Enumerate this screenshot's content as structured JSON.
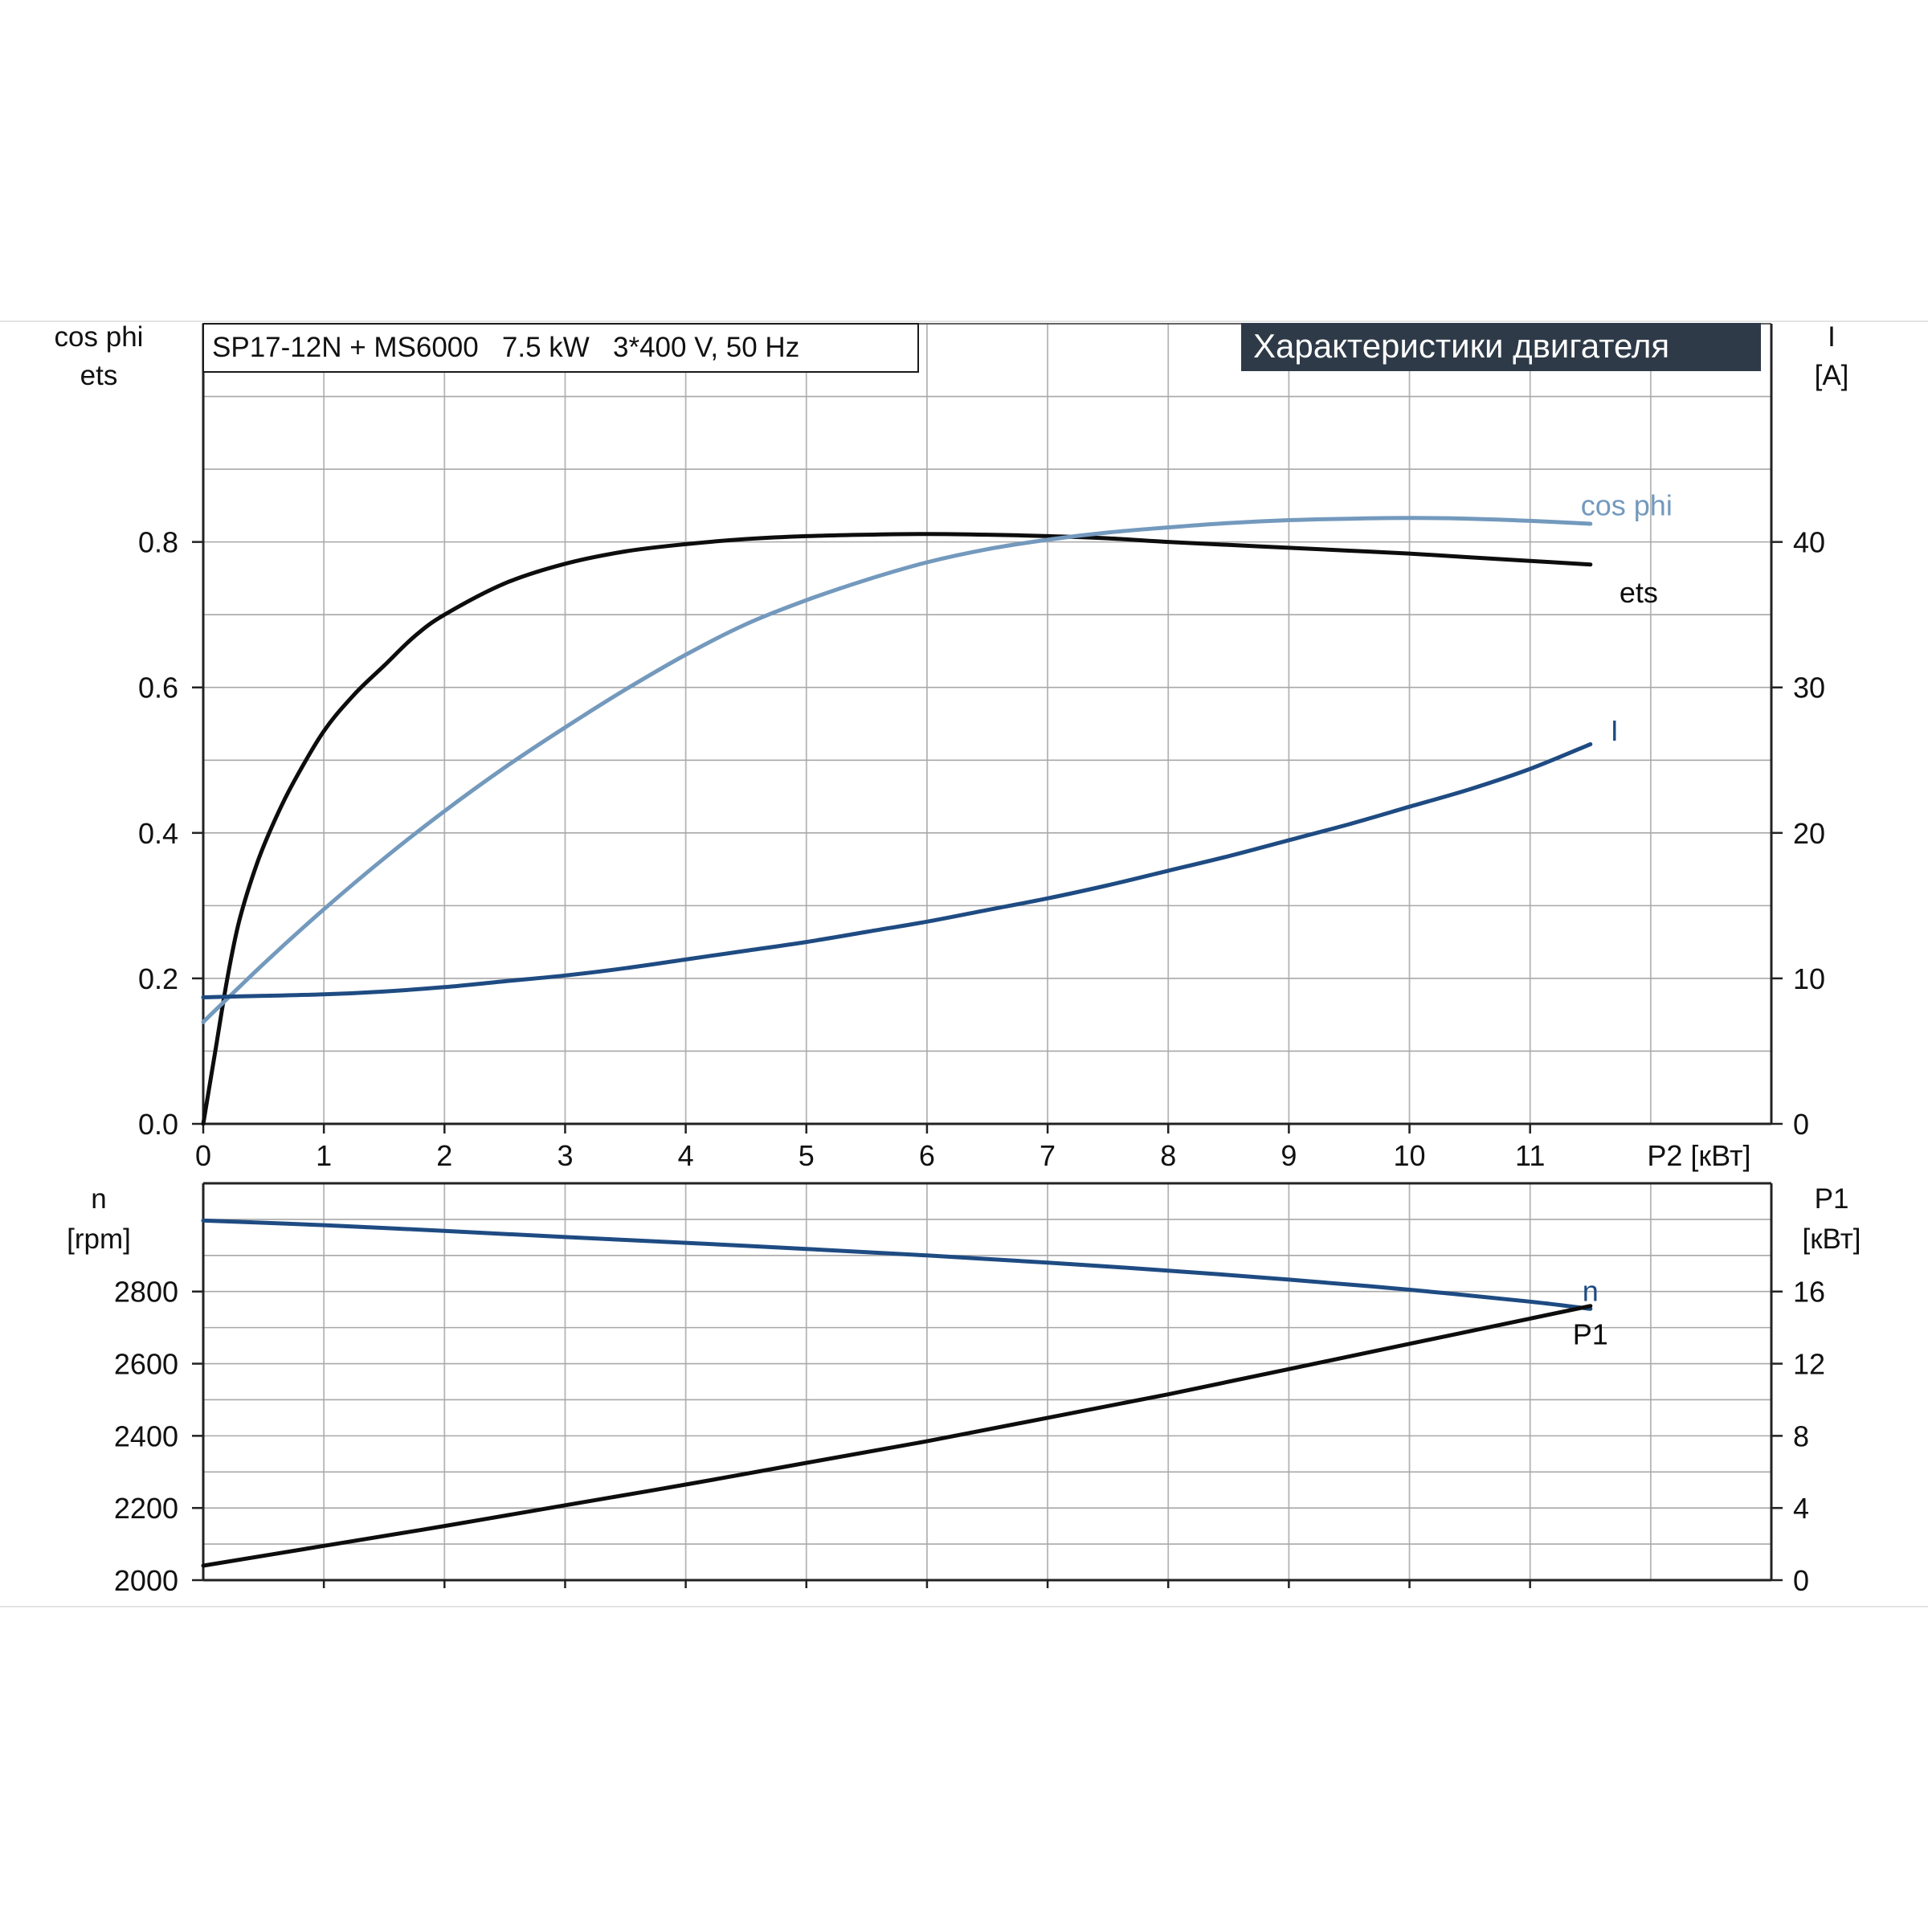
{
  "header": {
    "model_label": "SP17-12N + MS6000   7.5 kW   3*400 V, 50 Hz",
    "chart_title": "Характеристики двигателя"
  },
  "colors": {
    "ets": "#0d0d0d",
    "cos_phi": "#7399bd",
    "current": "#1e4b82",
    "speed": "#1e4b82",
    "p1": "#0d0d0d",
    "grid": "#a8a8a8",
    "title_bg": "#2e3a47"
  },
  "chart_data": [
    {
      "type": "line",
      "xlabel": "P2 [кВт]",
      "xlim": [
        0,
        13
      ],
      "x_ticks": [
        0,
        1,
        2,
        3,
        4,
        5,
        6,
        7,
        8,
        9,
        10,
        11
      ],
      "x_tick_labels": [
        "0",
        "1",
        "2",
        "3",
        "4",
        "5",
        "6",
        "7",
        "8",
        "9",
        "10",
        "11"
      ],
      "left_axis": {
        "label_lines": [
          "cos phi",
          "ets"
        ],
        "lim": [
          0,
          1.1
        ],
        "ticks": [
          0,
          0.2,
          0.4,
          0.6,
          0.8
        ],
        "tick_labels": [
          "0.0",
          "0.2",
          "0.4",
          "0.6",
          "0.8"
        ]
      },
      "right_axis": {
        "label_lines": [
          "I",
          "[A]"
        ],
        "lim": [
          0,
          55
        ],
        "ticks": [
          0,
          10,
          20,
          30,
          40
        ],
        "tick_labels": [
          "0",
          "10",
          "20",
          "30",
          "40"
        ]
      },
      "grid": true,
      "series": [
        {
          "name": "ets",
          "axis": "left",
          "x": [
            0,
            0.1,
            0.2,
            0.3,
            0.45,
            0.6,
            0.75,
            1,
            1.25,
            1.5,
            1.75,
            2,
            2.5,
            3,
            3.5,
            4,
            4.5,
            5,
            5.5,
            6,
            6.5,
            7,
            7.5,
            8,
            8.5,
            9,
            9.5,
            10,
            10.5,
            11,
            11.5
          ],
          "y": [
            0,
            0.1,
            0.2,
            0.28,
            0.36,
            0.42,
            0.47,
            0.54,
            0.59,
            0.63,
            0.67,
            0.7,
            0.743,
            0.77,
            0.787,
            0.797,
            0.804,
            0.808,
            0.81,
            0.811,
            0.81,
            0.808,
            0.805,
            0.8,
            0.796,
            0.792,
            0.788,
            0.784,
            0.779,
            0.774,
            0.769
          ]
        },
        {
          "name": "cos phi",
          "axis": "left",
          "x": [
            0,
            0.5,
            1,
            1.5,
            2,
            2.5,
            3,
            3.5,
            4,
            4.5,
            5,
            5.5,
            6,
            6.5,
            7,
            7.5,
            8,
            8.5,
            9,
            9.5,
            10,
            10.5,
            11,
            11.5
          ],
          "y": [
            0.14,
            0.22,
            0.295,
            0.365,
            0.43,
            0.49,
            0.545,
            0.597,
            0.645,
            0.687,
            0.72,
            0.748,
            0.772,
            0.79,
            0.803,
            0.813,
            0.82,
            0.826,
            0.83,
            0.832,
            0.833,
            0.832,
            0.829,
            0.825
          ]
        },
        {
          "name": "I",
          "axis": "right",
          "x": [
            0,
            0.5,
            1,
            1.5,
            2,
            2.5,
            3,
            3.5,
            4,
            4.5,
            5,
            5.5,
            6,
            6.5,
            7,
            7.5,
            8,
            8.5,
            9,
            9.5,
            10,
            10.5,
            11,
            11.5
          ],
          "y": [
            8.7,
            8.8,
            8.9,
            9.1,
            9.4,
            9.8,
            10.2,
            10.7,
            11.3,
            11.9,
            12.5,
            13.2,
            13.9,
            14.7,
            15.5,
            16.4,
            17.4,
            18.4,
            19.5,
            20.6,
            21.8,
            23.0,
            24.4,
            26.1
          ]
        }
      ],
      "annotations": [
        {
          "text": "cos phi",
          "series": "cos phi",
          "x": 11.8,
          "y": 0.85
        },
        {
          "text": "ets",
          "series": "ets",
          "x": 11.9,
          "y": 0.73
        },
        {
          "text": "I",
          "series": "I",
          "x": 11.7,
          "y": 0.54
        }
      ]
    },
    {
      "type": "line",
      "xlim": [
        0,
        13
      ],
      "left_axis": {
        "label_lines": [
          "n",
          "[rpm]"
        ],
        "lim": [
          2000,
          3100
        ],
        "ticks": [
          2000,
          2200,
          2400,
          2600,
          2800
        ],
        "tick_labels": [
          "2000",
          "2200",
          "2400",
          "2600",
          "2800"
        ]
      },
      "right_axis": {
        "label_lines": [
          "P1",
          "[кВт]"
        ],
        "lim": [
          0,
          22
        ],
        "ticks": [
          0,
          4,
          8,
          12,
          16
        ],
        "tick_labels": [
          "0",
          "4",
          "8",
          "12",
          "16"
        ]
      },
      "grid": true,
      "series": [
        {
          "name": "n",
          "axis": "left",
          "x": [
            0,
            1,
            2,
            3,
            4,
            5,
            6,
            7,
            8,
            9,
            10,
            11,
            11.5
          ],
          "y": [
            2997,
            2984,
            2968,
            2951,
            2935,
            2918,
            2900,
            2880,
            2858,
            2833,
            2805,
            2772,
            2752
          ]
        },
        {
          "name": "P1",
          "axis": "right",
          "x": [
            0,
            1,
            2,
            3,
            4,
            5,
            6,
            7,
            8,
            9,
            10,
            11,
            11.5
          ],
          "y": [
            0.8,
            1.9,
            3.0,
            4.15,
            5.3,
            6.5,
            7.7,
            9.0,
            10.3,
            11.7,
            13.1,
            14.5,
            15.2
          ]
        }
      ],
      "annotations": [
        {
          "text": "n",
          "series": "n",
          "x": 11.5,
          "y": 2800
        },
        {
          "text": "P1",
          "series": "P1",
          "x": 11.5,
          "y": 2680
        }
      ]
    }
  ]
}
